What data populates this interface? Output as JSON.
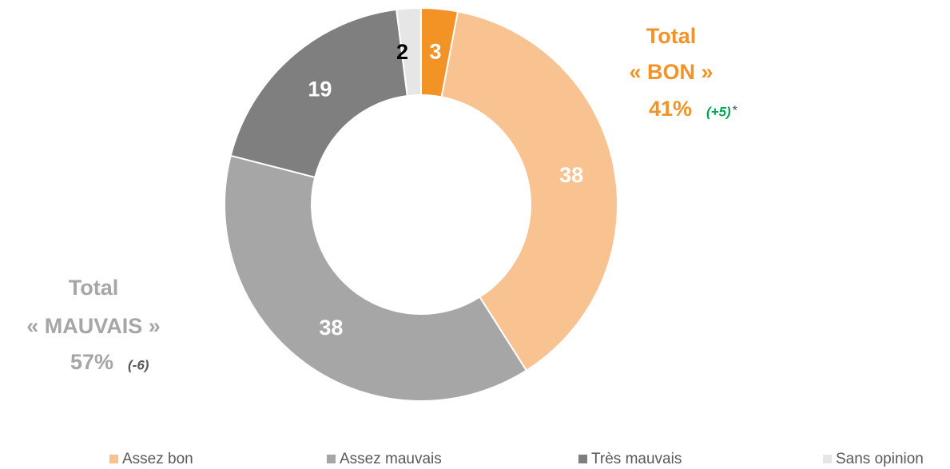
{
  "chart_data": {
    "type": "donut",
    "categories": [
      null,
      "Assez bon",
      "Assez mauvais",
      "Très mauvais",
      "Sans opinion"
    ],
    "values": [
      3,
      38,
      38,
      19,
      2
    ],
    "colors": [
      "#f39325",
      "#f9c291",
      "#a6a6a6",
      "#7f7f7f",
      "#e6e6e6"
    ],
    "label_colors": [
      "#ffffff",
      "#ffffff",
      "#ffffff",
      "#ffffff",
      "#000000"
    ],
    "annotations": [
      {
        "lines": [
          "Total",
          "« BON »"
        ],
        "total": "41%",
        "change": "(+5)",
        "note": "*",
        "color": "#f39325",
        "change_color": "#00a651"
      },
      {
        "lines": [
          "Total",
          "« MAUVAIS »"
        ],
        "total": "57%",
        "change": "(-6)",
        "color": "#a6a6a6",
        "change_color": "#595959"
      }
    ]
  }
}
